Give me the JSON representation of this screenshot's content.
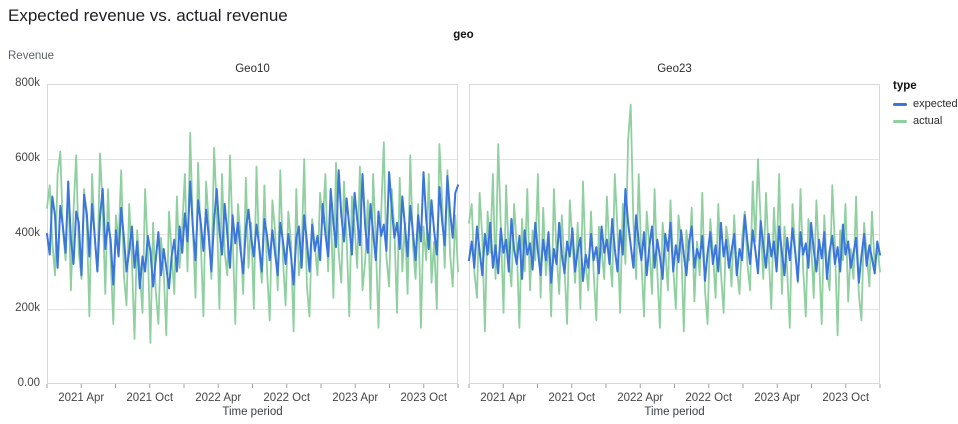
{
  "title": "Expected revenue vs. actual revenue",
  "chart_data": {
    "type": "line",
    "facet_field": "geo",
    "x_axis": {
      "title": "Time period",
      "minor_tick_months": [
        0,
        3,
        6,
        9,
        12,
        15,
        18,
        21,
        24,
        27,
        30,
        33,
        36
      ],
      "labeled_ticks": [
        {
          "month": 3,
          "label": "2021 Apr"
        },
        {
          "month": 9,
          "label": "2021 Oct"
        },
        {
          "month": 15,
          "label": "2022 Apr"
        },
        {
          "month": 21,
          "label": "2022 Oct"
        },
        {
          "month": 27,
          "label": "2023 Apr"
        },
        {
          "month": 33,
          "label": "2023 Oct"
        }
      ],
      "domain_months": 36,
      "start": "2021 Jan",
      "end": "2023 Dec",
      "frequency": "weekly"
    },
    "y_axis": {
      "title": "Revenue",
      "unit": "thousands",
      "max_thousands": 800,
      "ticks": [
        {
          "v": 800,
          "label": "800k"
        },
        {
          "v": 600,
          "label": "600k"
        },
        {
          "v": 400,
          "label": "400k"
        },
        {
          "v": 200,
          "label": "200k"
        },
        {
          "v": 0,
          "label": "0.00"
        }
      ],
      "grid_thousands": [
        200,
        400,
        600
      ]
    },
    "legend": {
      "title": "type",
      "items": [
        {
          "name": "expected",
          "color": "#3b76db"
        },
        {
          "name": "actual",
          "color": "#8fcfa0"
        }
      ]
    },
    "colors": {
      "expected": "#3b76db",
      "actual": "#8fcfa0",
      "grid": "#e3e3e3",
      "border": "#d9d9d9",
      "tick": "#9aa0a6"
    },
    "panels": [
      {
        "label": "Geo10",
        "series": [
          {
            "name": "expected",
            "color": "#3b76db",
            "values_thousands": [
              400,
              345,
              500,
              450,
              310,
              475,
              420,
              350,
              540,
              385,
              320,
              460,
              430,
              290,
              505,
              455,
              340,
              480,
              395,
              300,
              445,
              520,
              360,
              430,
              385,
              265,
              410,
              340,
              470,
              390,
              300,
              355,
              420,
              310,
              380,
              255,
              340,
              300,
              395,
              355,
              260,
              330,
              405,
              290,
              360,
              310,
              255,
              340,
              385,
              300,
              420,
              350,
              455,
              380,
              540,
              420,
              330,
              490,
              430,
              355,
              465,
              395,
              300,
              435,
              520,
              410,
              345,
              480,
              400,
              310,
              450,
              375,
              430,
              355,
              295,
              415,
              465,
              390,
              340,
              425,
              370,
              300,
              440,
              395,
              330,
              410,
              350,
              290,
              430,
              380,
              320,
              400,
              345,
              265,
              390,
              420,
              310,
              450,
              380,
              300,
              425,
              355,
              395,
              330,
              480,
              400,
              340,
              520,
              430,
              365,
              570,
              450,
              380,
              495,
              420,
              345,
              510,
              440,
              370,
              560,
              420,
              350,
              480,
              405,
              330,
              460,
              395,
              425,
              355,
              565,
              470,
              390,
              430,
              360,
              500,
              420,
              340,
              475,
              405,
              330,
              450,
              380,
              565,
              440,
              360,
              490,
              410,
              345,
              525,
              435,
              370,
              555,
              460,
              390,
              510,
              530
            ]
          },
          {
            "name": "actual",
            "color": "#8fcfa0",
            "values_thousands": [
              470,
              530,
              380,
              290,
              560,
              620,
              410,
              330,
              540,
              250,
              460,
              610,
              350,
              280,
              520,
              430,
              180,
              560,
              390,
              300,
              615,
              470,
              240,
              520,
              340,
              160,
              450,
              380,
              570,
              290,
              210,
              480,
              330,
              120,
              410,
              300,
              190,
              520,
              360,
              110,
              430,
              250,
              160,
              390,
              300,
              130,
              460,
              350,
              240,
              500,
              310,
              420,
              560,
              300,
              670,
              420,
              230,
              590,
              380,
              180,
              540,
              430,
              280,
              630,
              470,
              200,
              560,
              350,
              290,
              610,
              400,
              160,
              480,
              390,
              240,
              550,
              310,
              430,
              200,
              580,
              360,
              270,
              530,
              300,
              170,
              490,
              410,
              250,
              570,
              330,
              210,
              460,
              380,
              140,
              520,
              290,
              350,
              600,
              260,
              180,
              440,
              370,
              290,
              510,
              430,
              560,
              300,
              480,
              230,
              590,
              350,
              270,
              540,
              390,
              180,
              500,
              420,
              310,
              580,
              250,
              330,
              490,
              200,
              560,
              380,
              150,
              450,
              645,
              340,
              260,
              520,
              410,
              190,
              550,
              300,
              430,
              240,
              610,
              370,
              280,
              480,
              150,
              420,
              330,
              560,
              270,
              380,
              200,
              640,
              490,
              310,
              570,
              350,
              260,
              450,
              300
            ]
          }
        ]
      },
      {
        "label": "Geo23",
        "series": [
          {
            "name": "expected",
            "color": "#3b76db",
            "values_thousands": [
              330,
              380,
              310,
              420,
              355,
              290,
              400,
              345,
              430,
              310,
              370,
              295,
              415,
              350,
              385,
              300,
              440,
              360,
              320,
              395,
              280,
              410,
              345,
              375,
              305,
              430,
              355,
              290,
              385,
              330,
              405,
              270,
              360,
              320,
              430,
              345,
              295,
              380,
              340,
              415,
              300,
              355,
              390,
              275,
              345,
              310,
              400,
              330,
              365,
              295,
              420,
              350,
              385,
              320,
              440,
              360,
              300,
              410,
              345,
              520,
              430,
              370,
              310,
              450,
              380,
              330,
              405,
              290,
              365,
              420,
              310,
              385,
              340,
              280,
              400,
              355,
              430,
              300,
              370,
              325,
              410,
              345,
              290,
              380,
              420,
              310,
              360,
              335,
              395,
              275,
              350,
              405,
              320,
              370,
              300,
              430,
              340,
              385,
              310,
              355,
              400,
              290,
              360,
              330,
              450,
              380,
              320,
              410,
              355,
              295,
              435,
              370,
              310,
              400,
              340,
              380,
              300,
              420,
              350,
              290,
              390,
              330,
              415,
              355,
              275,
              405,
              345,
              375,
              310,
              430,
              360,
              300,
              385,
              335,
              405,
              280,
              355,
              395,
              320,
              365,
              300,
              425,
              345,
              380,
              310,
              350,
              390,
              270,
              340,
              400,
              315,
              370,
              335,
              295,
              380,
              345
            ]
          },
          {
            "name": "actual",
            "color": "#8fcfa0",
            "values_thousands": [
              430,
              480,
              300,
              230,
              510,
              390,
              140,
              460,
              350,
              560,
              280,
              640,
              420,
              190,
              530,
              340,
              260,
              480,
              370,
              150,
              440,
              300,
              520,
              250,
              410,
              330,
              560,
              230,
              470,
              290,
              380,
              180,
              520,
              350,
              240,
              450,
              310,
              160,
              490,
              380,
              270,
              430,
              200,
              540,
              320,
              250,
              460,
              300,
              170,
              420,
              360,
              280,
              500,
              350,
              260,
              560,
              410,
              190,
              480,
              320,
              650,
              745,
              430,
              280,
              560,
              330,
              180,
              460,
              370,
              240,
              520,
              300,
              150,
              430,
              360,
              250,
              490,
              310,
              200,
              450,
              380,
              140,
              410,
              330,
              470,
              220,
              380,
              290,
              510,
              250,
              160,
              440,
              350,
              230,
              480,
              300,
              190,
              420,
              370,
              260,
              450,
              310,
              240,
              390,
              460,
              320,
              250,
              540,
              380,
              600,
              430,
              280,
              510,
              350,
              200,
              470,
              330,
              560,
              240,
              420,
              300,
              150,
              480,
              360,
              270,
              520,
              310,
              180,
              440,
              380,
              230,
              490,
              340,
              160,
              450,
              300,
              250,
              530,
              370,
              130,
              410,
              330,
              480,
              220,
              360,
              280,
              500,
              240,
              170,
              430,
              350,
              260,
              460,
              310,
              370,
              300
            ]
          }
        ]
      }
    ]
  }
}
